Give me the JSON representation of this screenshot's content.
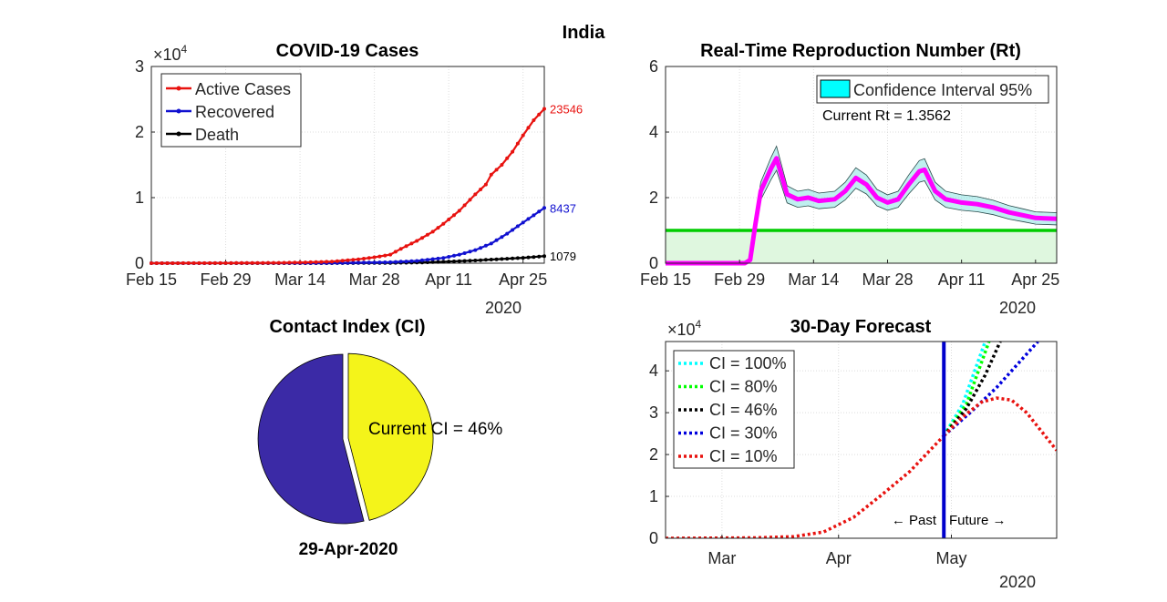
{
  "figure_title": "India",
  "colors": {
    "active": "#e8120f",
    "recovered": "#1010d0",
    "death": "#000000",
    "rt_line": "#ff00ff",
    "threshold": "#00cc00",
    "threshold_fill": "#dff7df",
    "ci_band": "#80e0e0",
    "ci_legend": "#00ffff",
    "pie_rest": "#3b2aa6",
    "pie_ci": "#f4f41a",
    "forecast_vline": "#0000cc"
  },
  "chart_data": [
    {
      "id": "cases",
      "type": "line",
      "title": "COVID-19 Cases",
      "exponent_label": "×10",
      "exponent_power": "4",
      "x_ticks": [
        "Feb 15",
        "Feb 29",
        "Mar 14",
        "Mar 28",
        "Apr 11",
        "Apr 25"
      ],
      "x_year": "2020",
      "y_ticks": [
        "0",
        "1",
        "2",
        "3"
      ],
      "ylim": [
        0,
        30000
      ],
      "x_range": [
        "2020-02-15",
        "2020-04-29"
      ],
      "grid": true,
      "legend_position": "top-left",
      "series": [
        {
          "name": "Active Cases",
          "color_key": "active",
          "end_label": "23546",
          "points": [
            [
              "2020-02-15",
              0
            ],
            [
              "2020-03-01",
              20
            ],
            [
              "2020-03-10",
              60
            ],
            [
              "2020-03-15",
              120
            ],
            [
              "2020-03-20",
              250
            ],
            [
              "2020-03-25",
              600
            ],
            [
              "2020-03-28",
              900
            ],
            [
              "2020-03-31",
              1300
            ],
            [
              "2020-04-02",
              2200
            ],
            [
              "2020-04-05",
              3400
            ],
            [
              "2020-04-08",
              4800
            ],
            [
              "2020-04-10",
              6000
            ],
            [
              "2020-04-13",
              8000
            ],
            [
              "2020-04-16",
              10500
            ],
            [
              "2020-04-18",
              12000
            ],
            [
              "2020-04-19",
              13500
            ],
            [
              "2020-04-21",
              15000
            ],
            [
              "2020-04-23",
              17000
            ],
            [
              "2020-04-25",
              19500
            ],
            [
              "2020-04-27",
              21800
            ],
            [
              "2020-04-29",
              23546
            ]
          ]
        },
        {
          "name": "Recovered",
          "color_key": "recovered",
          "end_label": "8437",
          "points": [
            [
              "2020-02-15",
              0
            ],
            [
              "2020-03-20",
              20
            ],
            [
              "2020-03-31",
              150
            ],
            [
              "2020-04-05",
              350
            ],
            [
              "2020-04-10",
              800
            ],
            [
              "2020-04-13",
              1300
            ],
            [
              "2020-04-16",
              2000
            ],
            [
              "2020-04-19",
              3000
            ],
            [
              "2020-04-22",
              4500
            ],
            [
              "2020-04-25",
              6200
            ],
            [
              "2020-04-27",
              7300
            ],
            [
              "2020-04-29",
              8437
            ]
          ]
        },
        {
          "name": "Death",
          "color_key": "death",
          "end_label": "1079",
          "points": [
            [
              "2020-02-15",
              0
            ],
            [
              "2020-03-20",
              5
            ],
            [
              "2020-03-31",
              40
            ],
            [
              "2020-04-06",
              110
            ],
            [
              "2020-04-11",
              250
            ],
            [
              "2020-04-16",
              420
            ],
            [
              "2020-04-21",
              640
            ],
            [
              "2020-04-25",
              820
            ],
            [
              "2020-04-29",
              1079
            ]
          ]
        }
      ]
    },
    {
      "id": "rt",
      "type": "line",
      "title": "Real-Time Reproduction Number (Rt)",
      "x_ticks": [
        "Feb 15",
        "Feb 29",
        "Mar 14",
        "Mar 28",
        "Apr 11",
        "Apr 25"
      ],
      "x_year": "2020",
      "y_ticks": [
        "0",
        "2",
        "4",
        "6"
      ],
      "ylim": [
        0,
        6
      ],
      "x_range": [
        "2020-02-15",
        "2020-04-29"
      ],
      "grid": true,
      "legend_position": "top-right",
      "legend_label": "Confidence Interval 95%",
      "annotation": "Current Rt = 1.3562",
      "threshold": 1,
      "series": [
        {
          "color_key": "rt_line",
          "points": [
            [
              "2020-02-15",
              0
            ],
            [
              "2020-03-01",
              0
            ],
            [
              "2020-03-02",
              0.1
            ],
            [
              "2020-03-03",
              1.2
            ],
            [
              "2020-03-04",
              2.2
            ],
            [
              "2020-03-06",
              2.9
            ],
            [
              "2020-03-07",
              3.2
            ],
            [
              "2020-03-09",
              2.1
            ],
            [
              "2020-03-11",
              1.95
            ],
            [
              "2020-03-13",
              2.0
            ],
            [
              "2020-03-15",
              1.9
            ],
            [
              "2020-03-18",
              1.95
            ],
            [
              "2020-03-20",
              2.2
            ],
            [
              "2020-03-22",
              2.6
            ],
            [
              "2020-03-24",
              2.4
            ],
            [
              "2020-03-26",
              2.0
            ],
            [
              "2020-03-28",
              1.85
            ],
            [
              "2020-03-30",
              1.95
            ],
            [
              "2020-04-01",
              2.4
            ],
            [
              "2020-04-03",
              2.8
            ],
            [
              "2020-04-04",
              2.85
            ],
            [
              "2020-04-06",
              2.2
            ],
            [
              "2020-04-08",
              1.95
            ],
            [
              "2020-04-11",
              1.85
            ],
            [
              "2020-04-14",
              1.8
            ],
            [
              "2020-04-17",
              1.7
            ],
            [
              "2020-04-20",
              1.55
            ],
            [
              "2020-04-23",
              1.45
            ],
            [
              "2020-04-25",
              1.38
            ],
            [
              "2020-04-29",
              1.3562
            ]
          ]
        }
      ]
    },
    {
      "id": "ci",
      "type": "pie",
      "title": "Contact Index (CI)",
      "date_label": "29-Apr-2020",
      "annotation": "Current CI = 46%",
      "slices": [
        {
          "value": 46,
          "color_key": "pie_ci",
          "exploded": true
        },
        {
          "value": 54,
          "color_key": "pie_rest",
          "exploded": false
        }
      ]
    },
    {
      "id": "forecast",
      "type": "line",
      "title": "30-Day Forecast",
      "exponent_label": "×10",
      "exponent_power": "4",
      "x_ticks": [
        "Mar",
        "Apr",
        "May"
      ],
      "x_year": "2020",
      "y_ticks": [
        "0",
        "1",
        "2",
        "3",
        "4"
      ],
      "ylim": [
        0,
        47000
      ],
      "x_range": [
        "2020-02-15",
        "2020-05-29"
      ],
      "grid": true,
      "legend_position": "top-left",
      "today": "2020-04-29",
      "past_label": "← Past",
      "future_label": "Future →",
      "history": [
        [
          "2020-02-15",
          0
        ],
        [
          "2020-03-10",
          100
        ],
        [
          "2020-03-20",
          400
        ],
        [
          "2020-03-28",
          1500
        ],
        [
          "2020-04-05",
          5000
        ],
        [
          "2020-04-12",
          10000
        ],
        [
          "2020-04-20",
          16000
        ],
        [
          "2020-04-29",
          24500
        ]
      ],
      "series": [
        {
          "name": "CI = 100%",
          "color": "#00ffff",
          "points": [
            [
              "2020-04-29",
              24500
            ],
            [
              "2020-05-04",
              32000
            ],
            [
              "2020-05-10",
              47000
            ]
          ]
        },
        {
          "name": "CI = 80%",
          "color": "#00ff00",
          "points": [
            [
              "2020-04-29",
              24500
            ],
            [
              "2020-05-05",
              32000
            ],
            [
              "2020-05-11",
              47000
            ]
          ]
        },
        {
          "name": "CI = 46%",
          "color": "#000000",
          "points": [
            [
              "2020-04-29",
              24500
            ],
            [
              "2020-05-05",
              31000
            ],
            [
              "2020-05-10",
              39000
            ],
            [
              "2020-05-14",
              47000
            ]
          ]
        },
        {
          "name": "CI = 30%",
          "color": "#0000dd",
          "points": [
            [
              "2020-04-29",
              24500
            ],
            [
              "2020-05-06",
              30000
            ],
            [
              "2020-05-13",
              36000
            ],
            [
              "2020-05-19",
              42000
            ],
            [
              "2020-05-24",
              47000
            ]
          ]
        },
        {
          "name": "CI = 10%",
          "color": "#e8120f",
          "points": [
            [
              "2020-04-29",
              24500
            ],
            [
              "2020-05-04",
              29000
            ],
            [
              "2020-05-09",
              32500
            ],
            [
              "2020-05-13",
              33500
            ],
            [
              "2020-05-17",
              33000
            ],
            [
              "2020-05-21",
              30000
            ],
            [
              "2020-05-25",
              25500
            ],
            [
              "2020-05-29",
              21000
            ]
          ]
        }
      ]
    }
  ]
}
